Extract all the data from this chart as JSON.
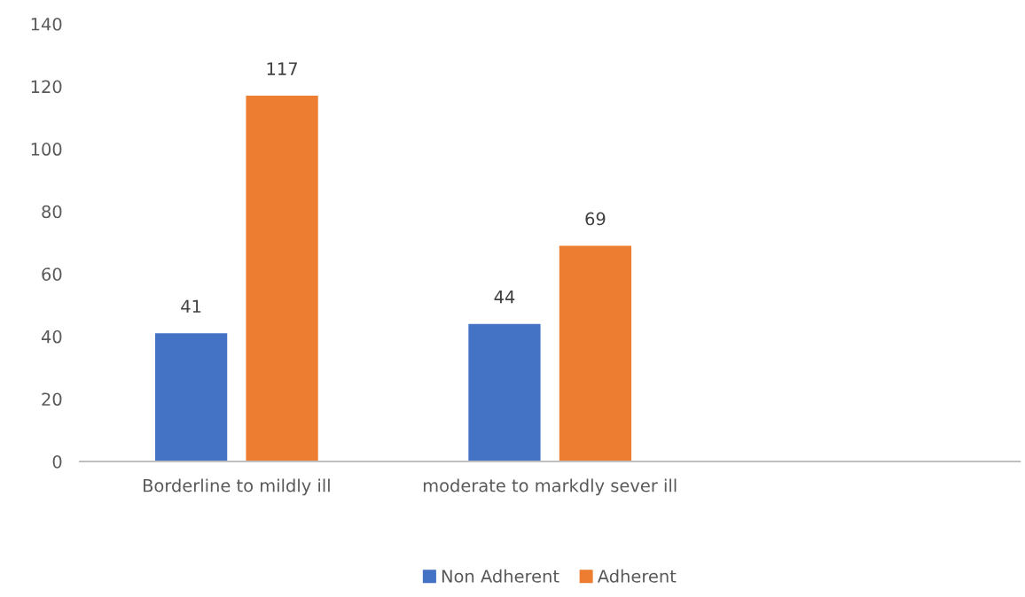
{
  "chart_data": {
    "type": "bar",
    "categories": [
      "Borderline to mildly ill",
      "moderate to markdly sever ill",
      null
    ],
    "series": [
      {
        "name": "Non Adherent",
        "color": "#4472c4",
        "values": [
          41,
          44,
          null
        ]
      },
      {
        "name": "Adherent",
        "color": "#ed7d31",
        "values": [
          117,
          69,
          null
        ]
      }
    ],
    "ylim": [
      0,
      140
    ],
    "yticks": [
      0,
      20,
      40,
      60,
      80,
      100,
      120,
      140
    ],
    "grid": false,
    "legend": "bottom",
    "data_labels": true
  }
}
